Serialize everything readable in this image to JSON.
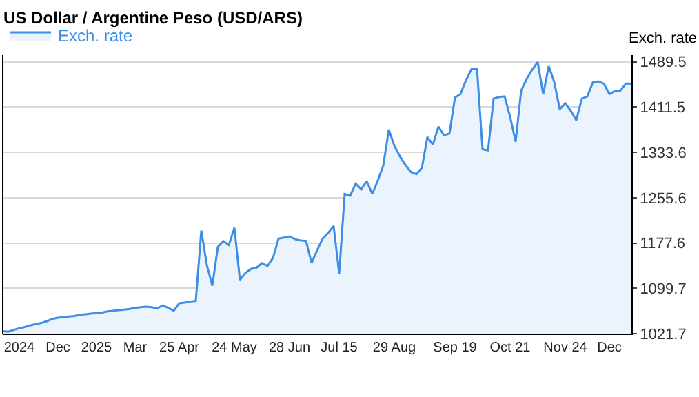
{
  "chart_data": {
    "type": "area",
    "title": "US Dollar / Argentine Peso (USD/ARS)",
    "ylabel": "Exch. rate",
    "categories": [
      null,
      null,
      null,
      "2024",
      null,
      null,
      null,
      null,
      null,
      null,
      "Dec",
      null,
      null,
      null,
      null,
      null,
      null,
      "2025",
      null,
      null,
      null,
      null,
      null,
      null,
      "Mar",
      null,
      null,
      null,
      null,
      null,
      null,
      null,
      "25 Apr",
      null,
      null,
      null,
      null,
      null,
      null,
      null,
      null,
      null,
      "24 May",
      null,
      null,
      null,
      null,
      null,
      null,
      null,
      null,
      null,
      "28 Jun",
      null,
      null,
      null,
      null,
      null,
      null,
      null,
      null,
      "Jul 15",
      null,
      null,
      null,
      null,
      null,
      null,
      null,
      null,
      null,
      "29 Aug",
      null,
      null,
      null,
      null,
      null,
      null,
      null,
      null,
      null,
      null,
      "Sep 19",
      null,
      null,
      null,
      null,
      null,
      null,
      null,
      null,
      null,
      "Oct 21",
      null,
      null,
      null,
      null,
      null,
      null,
      null,
      null,
      null,
      "Nov 24",
      null,
      null,
      null,
      null,
      null,
      null,
      null,
      "Dec",
      null,
      null,
      null,
      null
    ],
    "series": [
      {
        "name": "Exch. rate",
        "color": "#3d8ee6",
        "values": [
          1026,
          1025,
          1028,
          1031,
          1033,
          1036,
          1038,
          1040,
          1043,
          1047,
          1049,
          1050,
          1051,
          1052,
          1054,
          1055,
          1056,
          1057,
          1058,
          1060,
          1061,
          1062,
          1063,
          1064,
          1066,
          1067,
          1068,
          1067,
          1065,
          1070,
          1066,
          1061,
          1074,
          1075,
          1077,
          1078,
          1199,
          1140,
          1104,
          1171,
          1181,
          1174,
          1204,
          1114,
          1126,
          1133,
          1135,
          1143,
          1138,
          1152,
          1185,
          1187,
          1189,
          1184,
          1182,
          1181,
          1143,
          1165,
          1185,
          1195,
          1207,
          1125,
          1262,
          1259,
          1280,
          1270,
          1284,
          1262,
          1285,
          1311,
          1373,
          1345,
          1327,
          1312,
          1300,
          1296,
          1307,
          1360,
          1347,
          1378,
          1363,
          1366,
          1428,
          1434,
          1458,
          1477,
          1477,
          1339,
          1337,
          1426,
          1429,
          1430,
          1395,
          1352,
          1440,
          1460,
          1476,
          1489,
          1434,
          1482,
          1455,
          1408,
          1418,
          1405,
          1389,
          1426,
          1430,
          1454,
          1456,
          1452,
          1434,
          1439,
          1440,
          1452,
          1452
        ]
      }
    ],
    "ylim": [
      1021.7,
      1501
    ],
    "yticks": [
      1021.7,
      1099.7,
      1177.6,
      1255.6,
      1333.6,
      1411.5,
      1489.5
    ],
    "grid": "y",
    "legend": "top left",
    "marker": "none"
  }
}
